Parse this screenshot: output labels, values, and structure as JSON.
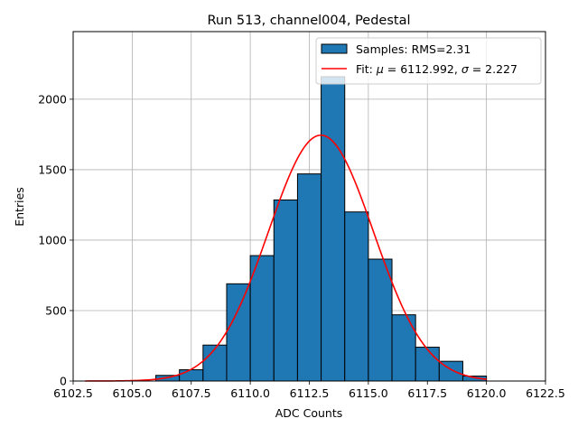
{
  "chart_data": {
    "type": "bar",
    "title": "Run 513, channel004, Pedestal",
    "xlabel": "ADC Counts",
    "ylabel": "Entries",
    "xlim": [
      6102.5,
      6122.5
    ],
    "ylim": [
      0,
      2480
    ],
    "grid": true,
    "legend_position": "top-right",
    "xticks": [
      6102.5,
      6105.0,
      6107.5,
      6110.0,
      6112.5,
      6115.0,
      6117.5,
      6120.0,
      6122.5
    ],
    "xtick_labels": [
      "6102.5",
      "6105.0",
      "6107.5",
      "6110.0",
      "6112.5",
      "6115.0",
      "6117.5",
      "6120.0",
      "6122.5"
    ],
    "yticks": [
      0,
      500,
      1000,
      1500,
      2000
    ],
    "ytick_labels": [
      "0",
      "500",
      "1000",
      "1500",
      "2000"
    ],
    "bins": {
      "edges": [
        6106,
        6107,
        6108,
        6109,
        6110,
        6111,
        6112,
        6113,
        6114,
        6115,
        6116,
        6117,
        6118,
        6119,
        6120
      ],
      "counts": [
        40,
        80,
        255,
        690,
        890,
        1285,
        1470,
        2160,
        1200,
        865,
        470,
        240,
        140,
        35
      ]
    },
    "series": [
      {
        "name": "Samples: RMS=2.31",
        "kind": "histogram",
        "color": "#1f77b4"
      },
      {
        "name": "Fit: μ = 6112.992, σ = 2.227",
        "kind": "gaussian",
        "color": "#ff0000",
        "mu": 6112.992,
        "sigma": 2.227,
        "amplitude": 1745,
        "x_range": [
          6103,
          6120
        ]
      }
    ],
    "legend": [
      {
        "label_prefix": "Samples: RMS=2.31",
        "type": "patch"
      },
      {
        "label_prefix": "Fit: ",
        "mu_symbol": "μ",
        "mu_text": " = 6112.992, ",
        "sigma_symbol": "σ",
        "sigma_text": " = 2.227",
        "type": "line"
      }
    ]
  }
}
